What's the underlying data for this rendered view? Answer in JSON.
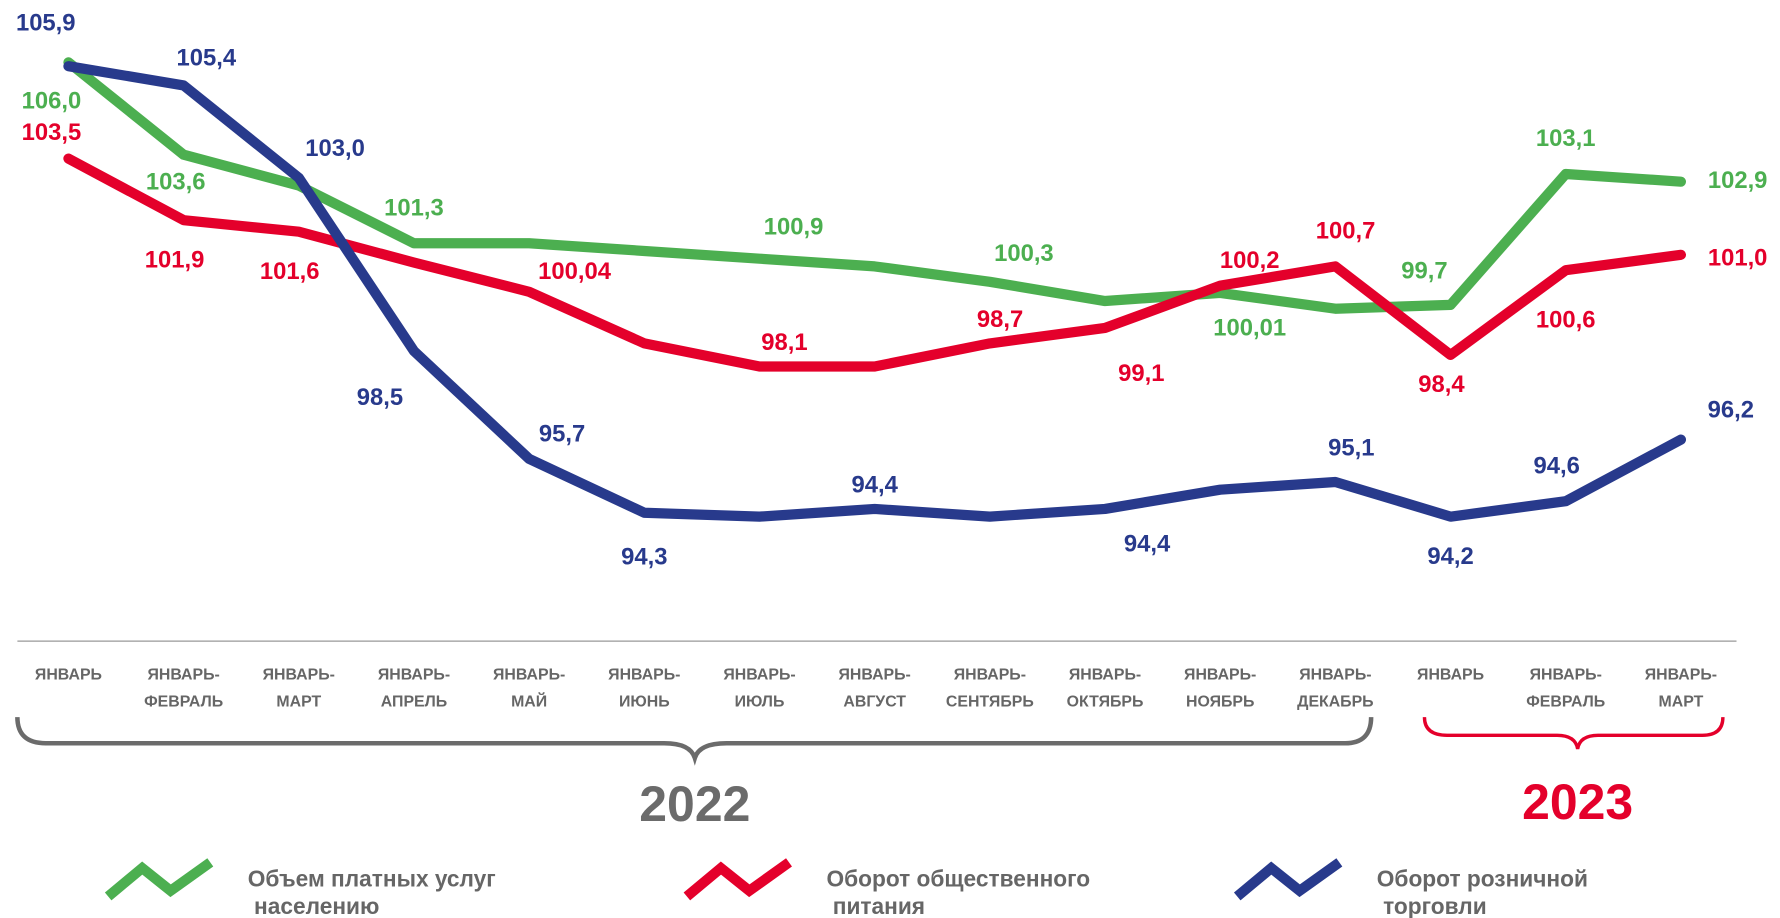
{
  "chart_data": {
    "type": "line",
    "categories": [
      [
        "ЯНВАРЬ"
      ],
      [
        "ЯНВАРЬ-",
        "ФЕВРАЛЬ"
      ],
      [
        "ЯНВАРЬ-",
        "МАРТ"
      ],
      [
        "ЯНВАРЬ-",
        "АПРЕЛЬ"
      ],
      [
        "ЯНВАРЬ-",
        "МАЙ"
      ],
      [
        "ЯНВАРЬ-",
        "ИЮНЬ"
      ],
      [
        "ЯНВАРЬ-",
        "ИЮЛЬ"
      ],
      [
        "ЯНВАРЬ-",
        "АВГУСТ"
      ],
      [
        "ЯНВАРЬ-",
        "СЕНТЯБРЬ"
      ],
      [
        "ЯНВАРЬ-",
        "ОКТЯБРЬ"
      ],
      [
        "ЯНВАРЬ-",
        "НОЯБРЬ"
      ],
      [
        "ЯНВАРЬ-",
        "ДЕКАБРЬ"
      ],
      [
        "ЯНВАРЬ"
      ],
      [
        "ЯНВАРЬ-",
        "ФЕВРАЛЬ"
      ],
      [
        "ЯНВАРЬ-",
        "МАРТ"
      ]
    ],
    "groups": [
      "2022",
      "2023"
    ],
    "ylim": [
      93,
      107
    ],
    "series": [
      {
        "name": "Объем платных услуг населению",
        "color": "#4caf50",
        "values": [
          106.0,
          103.6,
          102.8,
          101.3,
          101.3,
          101.1,
          100.9,
          100.7,
          100.3,
          99.8,
          100.01,
          99.6,
          99.7,
          103.1,
          102.9
        ],
        "value_labels": [
          "106,0",
          "103,6",
          null,
          "101,3",
          null,
          null,
          "100,9",
          null,
          "100,3",
          null,
          "100,01",
          null,
          "99,7",
          "103,1",
          "102,9"
        ]
      },
      {
        "name": "Оборот общественного питания",
        "color": "#e4002b",
        "values": [
          103.5,
          101.9,
          101.6,
          100.8,
          100.04,
          98.7,
          98.1,
          98.1,
          98.7,
          99.1,
          100.2,
          100.7,
          98.4,
          100.6,
          101.0
        ],
        "value_labels": [
          "103,5",
          "101,9",
          "101,6",
          null,
          "100,04",
          null,
          "98,1",
          null,
          "98,7",
          "99,1",
          "100,2",
          "100,7",
          "98,4",
          "100,6",
          "101,0"
        ]
      },
      {
        "name": "Оборот розничной торговли",
        "color": "#283a8c",
        "values": [
          105.9,
          105.4,
          103.0,
          98.5,
          95.7,
          94.3,
          94.2,
          94.4,
          94.2,
          94.4,
          94.9,
          95.1,
          94.2,
          94.6,
          96.2
        ],
        "value_labels": [
          "105,9",
          "105,4",
          "103,0",
          "98,5",
          "95,7",
          "94,3",
          null,
          "94,4",
          null,
          "94,4",
          null,
          "95,1",
          "94,2",
          "94,6",
          "96,2"
        ]
      }
    ]
  }
}
